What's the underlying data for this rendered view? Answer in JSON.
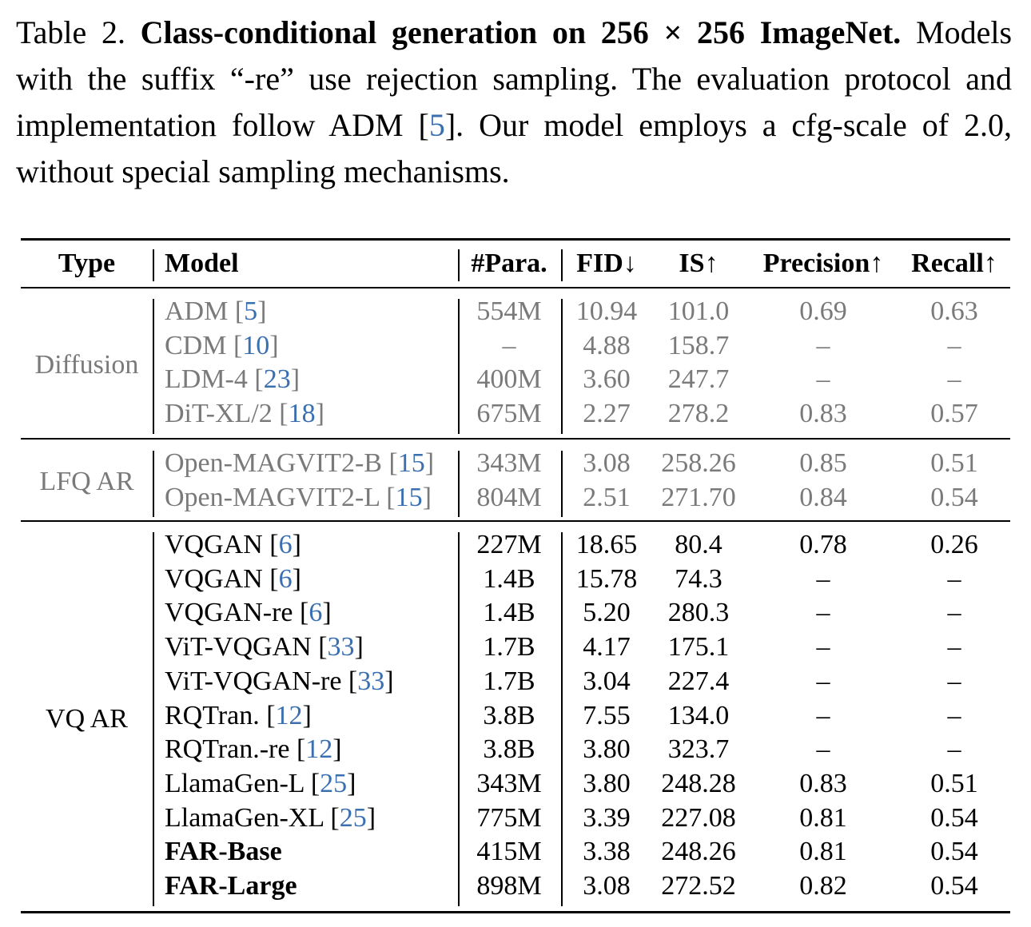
{
  "caption": {
    "table_label": "Table 2.",
    "title": "Class-conditional generation on 256 × 256 ImageNet.",
    "line_a": "Models with the suffix “-re” use rejection sampling. The evaluation protocol and implementation follow ADM [",
    "cite_a": "5",
    "line_b": "]. Our model employs a cfg-scale of 2.0, without special sampling mechanisms."
  },
  "headers": {
    "type": "Type",
    "model": "Model",
    "para": "#Para.",
    "fid": "FID↓",
    "is": "IS↑",
    "precision": "Precision↑",
    "recall": "Recall↑"
  },
  "groups": [
    {
      "type": "Diffusion",
      "style": "gray",
      "rows": [
        {
          "model": "ADM [",
          "cite": "5",
          "para": "554M",
          "fid": "10.94",
          "is": "101.0",
          "precision": "0.69",
          "recall": "0.63"
        },
        {
          "model": "CDM [",
          "cite": "10",
          "para": "–",
          "fid": "4.88",
          "is": "158.7",
          "precision": "–",
          "recall": "–"
        },
        {
          "model": "LDM-4 [",
          "cite": "23",
          "para": "400M",
          "fid": "3.60",
          "is": "247.7",
          "precision": "–",
          "recall": "–"
        },
        {
          "model": "DiT-XL/2 [",
          "cite": "18",
          "para": "675M",
          "fid": "2.27",
          "is": "278.2",
          "precision": "0.83",
          "recall": "0.57"
        }
      ]
    },
    {
      "type": "LFQ AR",
      "style": "gray",
      "rows": [
        {
          "model": "Open-MAGVIT2-B [",
          "cite": "15",
          "para": "343M",
          "fid": "3.08",
          "is": "258.26",
          "precision": "0.85",
          "recall": "0.51"
        },
        {
          "model": "Open-MAGVIT2-L [",
          "cite": "15",
          "para": "804M",
          "fid": "2.51",
          "is": "271.70",
          "precision": "0.84",
          "recall": "0.54"
        }
      ]
    },
    {
      "type": "VQ AR",
      "style": "normal",
      "rows": [
        {
          "model": "VQGAN [",
          "cite": "6",
          "para": "227M",
          "fid": "18.65",
          "is": "80.4",
          "precision": "0.78",
          "recall": "0.26"
        },
        {
          "model": "VQGAN [",
          "cite": "6",
          "para": "1.4B",
          "fid": "15.78",
          "is": "74.3",
          "precision": "–",
          "recall": "–"
        },
        {
          "model": "VQGAN-re [",
          "cite": "6",
          "para": "1.4B",
          "fid": "5.20",
          "is": "280.3",
          "precision": "–",
          "recall": "–"
        },
        {
          "model": "ViT-VQGAN [",
          "cite": "33",
          "para": "1.7B",
          "fid": "4.17",
          "is": "175.1",
          "precision": "–",
          "recall": "–"
        },
        {
          "model": "ViT-VQGAN-re [",
          "cite": "33",
          "para": "1.7B",
          "fid": "3.04",
          "is": "227.4",
          "precision": "–",
          "recall": "–"
        },
        {
          "model": "RQTran. [",
          "cite": "12",
          "para": "3.8B",
          "fid": "7.55",
          "is": "134.0",
          "precision": "–",
          "recall": "–"
        },
        {
          "model": "RQTran.-re [",
          "cite": "12",
          "para": "3.8B",
          "fid": "3.80",
          "is": "323.7",
          "precision": "–",
          "recall": "–"
        },
        {
          "model": "LlamaGen-L [",
          "cite": "25",
          "para": "343M",
          "fid": "3.80",
          "is": "248.28",
          "precision": "0.83",
          "recall": "0.51"
        },
        {
          "model": "LlamaGen-XL [",
          "cite": "25",
          "para": "775M",
          "fid": "3.39",
          "is": "227.08",
          "precision": "0.81",
          "recall": "0.54"
        },
        {
          "model": "FAR-Base",
          "cite": "",
          "bold": true,
          "para": "415M",
          "fid": "3.38",
          "is": "248.26",
          "precision": "0.81",
          "recall": "0.54"
        },
        {
          "model": "FAR-Large",
          "cite": "",
          "bold": true,
          "para": "898M",
          "fid": "3.08",
          "is": "272.52",
          "precision": "0.82",
          "recall": "0.54"
        }
      ]
    }
  ]
}
